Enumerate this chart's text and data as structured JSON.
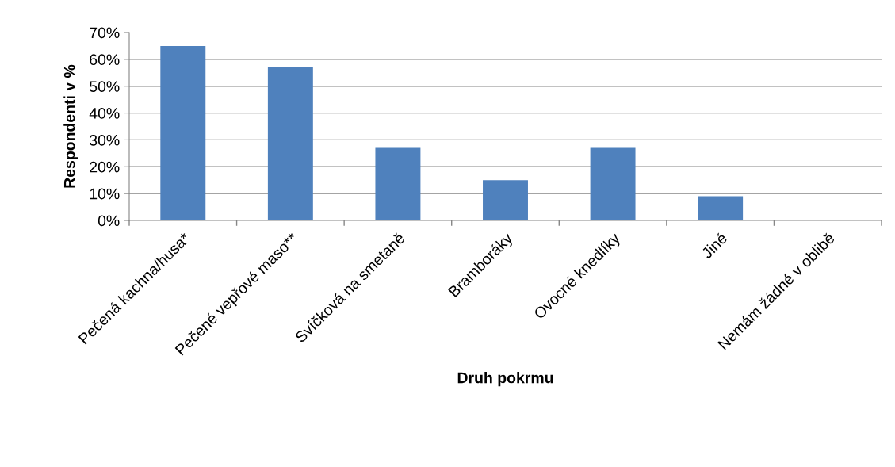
{
  "chart_data": {
    "type": "bar",
    "xlabel": "Druh pokrmu",
    "ylabel": "Respondenti v %",
    "categories": [
      "Pečená kachna/husa*",
      "Pečené vepřové maso**",
      "Svíčková na smetaně",
      "Bramboráky",
      "Ovocné knedlíky",
      "Jiné",
      "Nemám žádné v oblibě"
    ],
    "values": [
      65,
      57,
      27,
      15,
      27,
      9,
      0
    ],
    "color": "#4f81bd",
    "ylim": [
      0,
      70
    ],
    "yticks": [
      {
        "value": 0,
        "label": "0%"
      },
      {
        "value": 10,
        "label": "10%"
      },
      {
        "value": 20,
        "label": "20%"
      },
      {
        "value": 30,
        "label": "30%"
      },
      {
        "value": 40,
        "label": "40%"
      },
      {
        "value": 50,
        "label": "50%"
      },
      {
        "value": 60,
        "label": "60%"
      },
      {
        "value": 70,
        "label": "70%"
      }
    ],
    "grid": "y",
    "legend": false
  }
}
